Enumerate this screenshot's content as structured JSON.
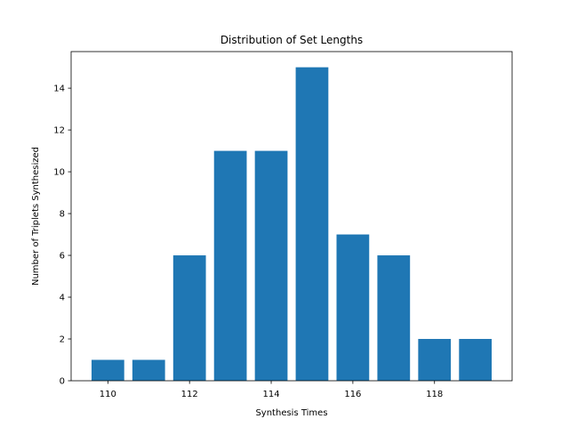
{
  "chart_data": {
    "type": "bar",
    "title": "Distribution of Set Lengths",
    "xlabel": "Synthesis Times",
    "ylabel": "Number of Triplets Synthesized",
    "x": [
      110,
      111,
      112,
      113,
      114,
      115,
      116,
      117,
      118,
      119
    ],
    "values": [
      1,
      1,
      6,
      11,
      11,
      15,
      7,
      6,
      2,
      2
    ],
    "xlim": [
      109.1,
      119.9
    ],
    "ylim": [
      0,
      15.75
    ],
    "xticks": [
      110,
      112,
      114,
      116,
      118
    ],
    "yticks": [
      0,
      2,
      4,
      6,
      8,
      10,
      12,
      14
    ],
    "bar_color": "#1f77b4",
    "grid": false
  }
}
